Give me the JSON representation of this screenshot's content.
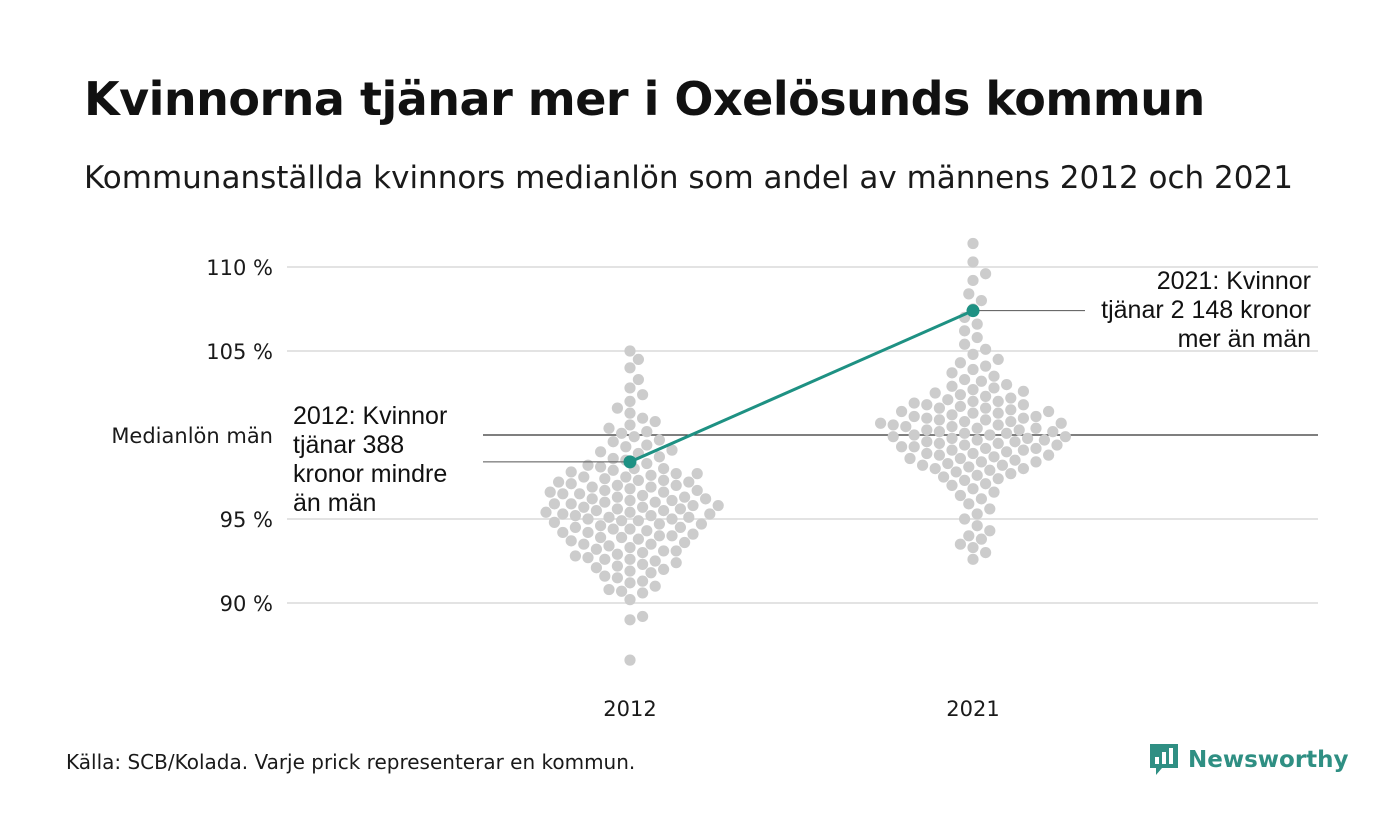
{
  "title": "Kvinnorna tjänar mer i Oxelösunds kommun",
  "subtitle": "Kommunanställda kvinnors medianlön som andel av männens 2012 och 2021",
  "source": "Källa: SCB/Kolada. Varje prick representerar en kommun.",
  "brand": {
    "name": "Newsworthy",
    "logo_icon": "bar-chart-icon"
  },
  "colors": {
    "accent": "#1e9183",
    "dots": "#cccccc",
    "grid": "#e3e3e3",
    "reference": "#333333"
  },
  "chart_data": {
    "type": "scatter",
    "x_categories": [
      "2012",
      "2021"
    ],
    "y_ticks": [
      {
        "value": 90,
        "label": "90 %"
      },
      {
        "value": 95,
        "label": "95 %"
      },
      {
        "value": 105,
        "label": "105 %"
      },
      {
        "value": 110,
        "label": "110 %"
      }
    ],
    "ylim": [
      86,
      112
    ],
    "reference_line": {
      "value": 100,
      "label": "Medianlön män"
    },
    "highlight": {
      "values": {
        "2012": 98.4,
        "2021": 107.4
      },
      "annotations": {
        "2012": [
          "2012: Kvinnor",
          "tjänar 388",
          "kronor mindre",
          "än män"
        ],
        "2021": [
          "2021: Kvinnor",
          "tjänar 2 148 kronor",
          "mer än män"
        ]
      }
    },
    "distributions": {
      "2012": [
        86.6,
        89.0,
        89.2,
        90.2,
        90.6,
        90.7,
        90.8,
        91.0,
        91.2,
        91.3,
        91.5,
        91.6,
        91.8,
        91.9,
        92.0,
        92.1,
        92.2,
        92.3,
        92.4,
        92.5,
        92.6,
        92.6,
        92.7,
        92.8,
        92.9,
        93.0,
        93.1,
        93.1,
        93.2,
        93.3,
        93.4,
        93.5,
        93.5,
        93.6,
        93.7,
        93.8,
        93.9,
        93.9,
        94.0,
        94.0,
        94.1,
        94.2,
        94.2,
        94.3,
        94.4,
        94.4,
        94.5,
        94.5,
        94.6,
        94.7,
        94.7,
        94.8,
        94.9,
        94.9,
        95.0,
        95.0,
        95.1,
        95.1,
        95.2,
        95.2,
        95.3,
        95.3,
        95.4,
        95.4,
        95.5,
        95.5,
        95.6,
        95.6,
        95.7,
        95.7,
        95.8,
        95.8,
        95.9,
        95.9,
        96.0,
        96.0,
        96.1,
        96.1,
        96.2,
        96.2,
        96.3,
        96.3,
        96.4,
        96.5,
        96.5,
        96.6,
        96.6,
        96.7,
        96.7,
        96.8,
        96.9,
        96.9,
        97.0,
        97.0,
        97.1,
        97.2,
        97.2,
        97.3,
        97.3,
        97.4,
        97.5,
        97.5,
        97.6,
        97.7,
        97.7,
        97.8,
        97.9,
        98.0,
        98.0,
        98.1,
        98.2,
        98.3,
        98.5,
        98.6,
        98.7,
        98.9,
        99.0,
        99.1,
        99.3,
        99.4,
        99.6,
        99.7,
        99.9,
        100.1,
        100.2,
        100.4,
        100.6,
        100.8,
        101.0,
        101.3,
        101.6,
        102.0,
        102.4,
        102.8,
        103.3,
        104.0,
        104.5,
        105.0
      ],
      "2021": [
        92.6,
        93.0,
        93.3,
        93.5,
        93.8,
        94.0,
        94.3,
        94.6,
        95.0,
        95.3,
        95.6,
        95.9,
        96.2,
        96.4,
        96.6,
        96.8,
        97.0,
        97.1,
        97.3,
        97.4,
        97.5,
        97.6,
        97.7,
        97.8,
        97.9,
        98.0,
        98.0,
        98.1,
        98.2,
        98.2,
        98.3,
        98.4,
        98.4,
        98.5,
        98.6,
        98.6,
        98.7,
        98.8,
        98.8,
        98.9,
        98.9,
        99.0,
        99.1,
        99.1,
        99.2,
        99.2,
        99.3,
        99.3,
        99.4,
        99.4,
        99.5,
        99.5,
        99.6,
        99.6,
        99.7,
        99.7,
        99.8,
        99.8,
        99.9,
        99.9,
        100.0,
        100.0,
        100.1,
        100.1,
        100.2,
        100.2,
        100.3,
        100.3,
        100.4,
        100.4,
        100.5,
        100.5,
        100.6,
        100.6,
        100.7,
        100.7,
        100.8,
        100.8,
        100.9,
        100.9,
        101.0,
        101.0,
        101.1,
        101.1,
        101.2,
        101.3,
        101.3,
        101.4,
        101.4,
        101.5,
        101.6,
        101.6,
        101.7,
        101.8,
        101.8,
        101.9,
        102.0,
        102.0,
        102.1,
        102.2,
        102.3,
        102.4,
        102.5,
        102.6,
        102.7,
        102.8,
        102.9,
        103.0,
        103.2,
        103.3,
        103.5,
        103.7,
        103.9,
        104.1,
        104.3,
        104.5,
        104.8,
        105.1,
        105.4,
        105.8,
        106.2,
        106.6,
        107.0,
        107.5,
        108.0,
        108.4,
        109.2,
        109.6,
        110.3,
        111.4
      ]
    }
  }
}
